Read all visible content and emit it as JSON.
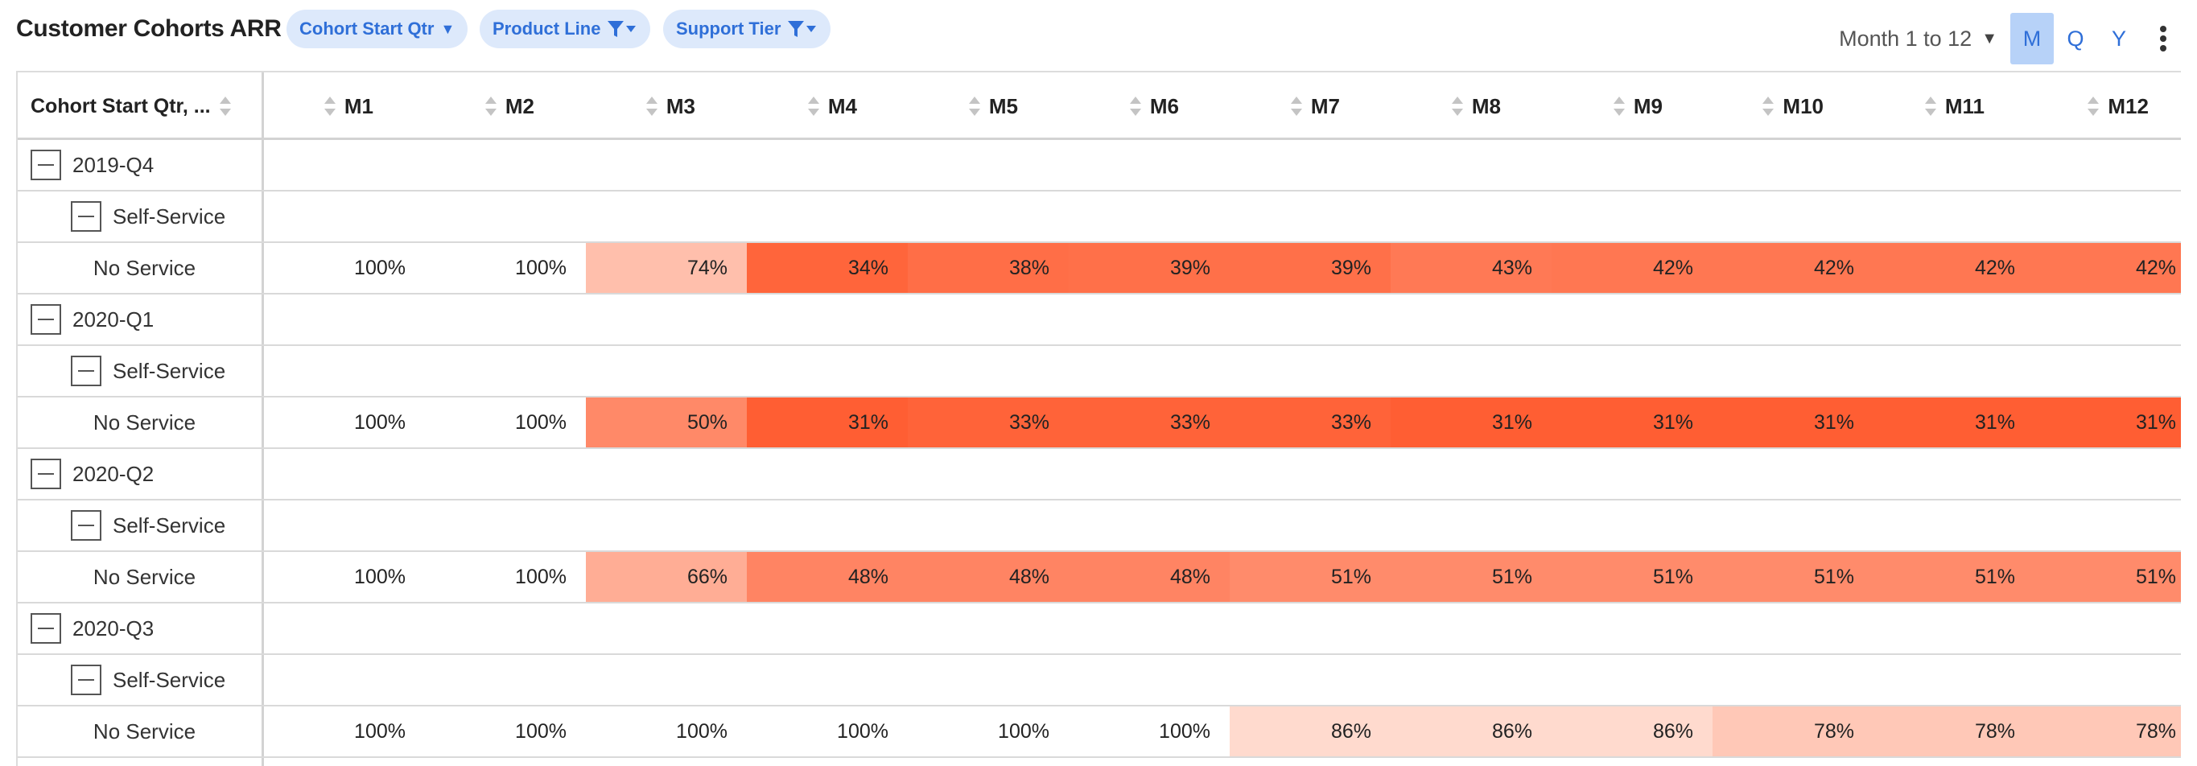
{
  "title": "Customer Cohorts ARR",
  "filters": [
    {
      "label": "Cohort Start Qtr",
      "icon": "caret-down-icon"
    },
    {
      "label": "Product Line",
      "icon": "filter-icon"
    },
    {
      "label": "Support Tier",
      "icon": "filter-icon"
    }
  ],
  "range_label": "Month 1 to 12",
  "granularity": [
    "M",
    "Q",
    "Y"
  ],
  "active_granularity": "M",
  "colors": {
    "accent": "#2f6fd8",
    "chip_bg": "#dde9fb",
    "active_bg": "#b7d2f8",
    "heat_max": "#ff5e33"
  },
  "table": {
    "first_header": "Cohort Start Qtr, ...",
    "columns": [
      "M1",
      "M2",
      "M3",
      "M4",
      "M5",
      "M6",
      "M7",
      "M8",
      "M9",
      "M10",
      "M11",
      "M12"
    ],
    "cohorts": [
      {
        "quarter": "2019-Q4",
        "product": "Self-Service",
        "tier": "No Service",
        "values": [
          "100%",
          "100%",
          "74%",
          "34%",
          "38%",
          "39%",
          "39%",
          "43%",
          "42%",
          "42%",
          "42%",
          "42%"
        ]
      },
      {
        "quarter": "2020-Q1",
        "product": "Self-Service",
        "tier": "No Service",
        "values": [
          "100%",
          "100%",
          "50%",
          "31%",
          "33%",
          "33%",
          "33%",
          "31%",
          "31%",
          "31%",
          "31%",
          "31%"
        ]
      },
      {
        "quarter": "2020-Q2",
        "product": "Self-Service",
        "tier": "No Service",
        "values": [
          "100%",
          "100%",
          "66%",
          "48%",
          "48%",
          "48%",
          "51%",
          "51%",
          "51%",
          "51%",
          "51%",
          "51%"
        ]
      },
      {
        "quarter": "2020-Q3",
        "product": "Self-Service",
        "tier": "No Service",
        "values": [
          "100%",
          "100%",
          "100%",
          "100%",
          "100%",
          "100%",
          "86%",
          "86%",
          "86%",
          "78%",
          "78%",
          "78%"
        ]
      }
    ]
  }
}
